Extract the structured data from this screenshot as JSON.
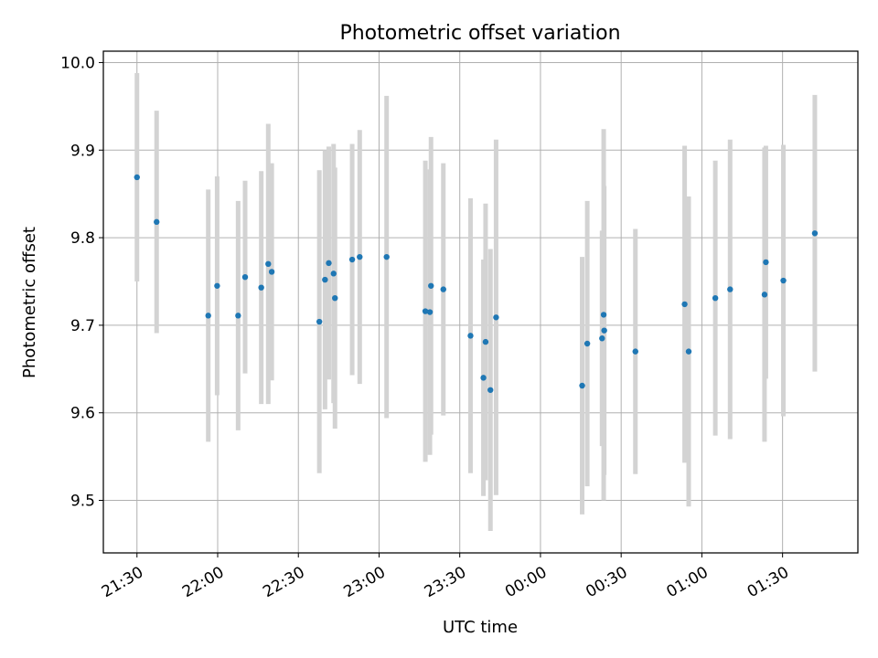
{
  "chart_data": {
    "type": "scatter",
    "title": "Photometric offset variation",
    "xlabel": "UTC time",
    "ylabel": "Photometric offset",
    "x_ticks": [
      {
        "time": "21:30",
        "label": "21:30"
      },
      {
        "time": "22:00",
        "label": "22:00"
      },
      {
        "time": "22:30",
        "label": "22:30"
      },
      {
        "time": "23:00",
        "label": "23:00"
      },
      {
        "time": "23:30",
        "label": "23:30"
      },
      {
        "time": "00:00",
        "label": "00:00"
      },
      {
        "time": "00:30",
        "label": "00:30"
      },
      {
        "time": "01:00",
        "label": "01:00"
      },
      {
        "time": "01:30",
        "label": "01:30"
      }
    ],
    "y_ticks": [
      {
        "value": 9.5,
        "label": "9.5"
      },
      {
        "value": 9.6,
        "label": "9.6"
      },
      {
        "value": 9.7,
        "label": "9.7"
      },
      {
        "value": 9.8,
        "label": "9.8"
      },
      {
        "value": 9.9,
        "label": "9.9"
      },
      {
        "value": 10.0,
        "label": "10.0"
      }
    ],
    "xlim": [
      "21:17:30",
      "01:58:00"
    ],
    "ylim": [
      9.44,
      10.013
    ],
    "grid": true,
    "marker_color": "#1f77b4",
    "errorbar_color": "#d3d3d3",
    "points": [
      {
        "time": "21:30:00",
        "y": 9.869,
        "err": 0.119
      },
      {
        "time": "21:37:18",
        "y": 9.818,
        "err": 0.127
      },
      {
        "time": "21:56:30",
        "y": 9.711,
        "err": 0.144
      },
      {
        "time": "21:59:48",
        "y": 9.745,
        "err": 0.125
      },
      {
        "time": "22:07:36",
        "y": 9.711,
        "err": 0.131
      },
      {
        "time": "22:10:12",
        "y": 9.755,
        "err": 0.11
      },
      {
        "time": "22:16:12",
        "y": 9.743,
        "err": 0.133
      },
      {
        "time": "22:18:48",
        "y": 9.77,
        "err": 0.16
      },
      {
        "time": "22:20:06",
        "y": 9.761,
        "err": 0.124
      },
      {
        "time": "22:37:48",
        "y": 9.704,
        "err": 0.173
      },
      {
        "time": "22:39:54",
        "y": 9.752,
        "err": 0.148
      },
      {
        "time": "22:41:18",
        "y": 9.771,
        "err": 0.133
      },
      {
        "time": "22:43:06",
        "y": 9.759,
        "err": 0.148
      },
      {
        "time": "22:43:36",
        "y": 9.731,
        "err": 0.149
      },
      {
        "time": "22:50:00",
        "y": 9.775,
        "err": 0.132
      },
      {
        "time": "22:52:48",
        "y": 9.778,
        "err": 0.145
      },
      {
        "time": "23:02:48",
        "y": 9.778,
        "err": 0.184
      },
      {
        "time": "23:17:12",
        "y": 9.716,
        "err": 0.172
      },
      {
        "time": "23:18:54",
        "y": 9.715,
        "err": 0.163
      },
      {
        "time": "23:19:18",
        "y": 9.745,
        "err": 0.17
      },
      {
        "time": "23:23:54",
        "y": 9.741,
        "err": 0.144
      },
      {
        "time": "23:34:00",
        "y": 9.688,
        "err": 0.157
      },
      {
        "time": "23:38:48",
        "y": 9.64,
        "err": 0.135
      },
      {
        "time": "23:39:36",
        "y": 9.681,
        "err": 0.158
      },
      {
        "time": "23:41:24",
        "y": 9.626,
        "err": 0.161
      },
      {
        "time": "23:43:30",
        "y": 9.709,
        "err": 0.203
      },
      {
        "time": "00:15:30",
        "y": 9.631,
        "err": 0.147
      },
      {
        "time": "00:17:24",
        "y": 9.679,
        "err": 0.163
      },
      {
        "time": "00:22:54",
        "y": 9.685,
        "err": 0.123
      },
      {
        "time": "00:23:30",
        "y": 9.712,
        "err": 0.212
      },
      {
        "time": "00:23:42",
        "y": 9.694,
        "err": 0.165
      },
      {
        "time": "00:35:18",
        "y": 9.67,
        "err": 0.14
      },
      {
        "time": "00:53:36",
        "y": 9.724,
        "err": 0.181
      },
      {
        "time": "00:55:06",
        "y": 9.67,
        "err": 0.177
      },
      {
        "time": "01:05:00",
        "y": 9.731,
        "err": 0.157
      },
      {
        "time": "01:10:30",
        "y": 9.741,
        "err": 0.171
      },
      {
        "time": "01:23:18",
        "y": 9.735,
        "err": 0.168
      },
      {
        "time": "01:23:48",
        "y": 9.772,
        "err": 0.133
      },
      {
        "time": "01:30:18",
        "y": 9.751,
        "err": 0.155
      },
      {
        "time": "01:42:00",
        "y": 9.805,
        "err": 0.158
      }
    ]
  }
}
